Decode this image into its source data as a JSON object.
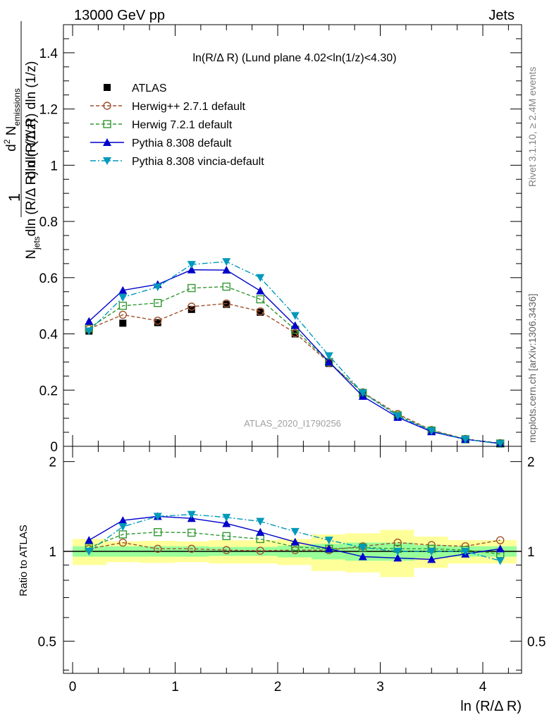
{
  "header": {
    "left": "13000 GeV pp",
    "right": "Jets",
    "side_top": "Rivet 3.1.10, ≥ 2.4M events",
    "side_bottom": "mcplots.cern.ch [arXiv:1306.3436]",
    "analysis_id": "ATLAS_2020_I1790256"
  },
  "chart_data": [
    {
      "type": "line",
      "title": "ln(R/Δ R) (Lund plane 4.02<ln(1/z)<4.30)",
      "xlabel": "ln (R/Δ R)",
      "ylabel": "1/N_jets d²N_emissions / dln(R/Δ R) dln(1/z)",
      "xlim": [
        -0.1,
        4.4
      ],
      "ylim": [
        0,
        1.5
      ],
      "yticks": [
        0,
        0.2,
        0.4,
        0.6,
        0.8,
        1,
        1.2,
        1.4
      ],
      "ytick_labels": [
        "0",
        "0.2",
        "0.4",
        "0.6",
        "0.8",
        "1",
        "1.2",
        "1.4"
      ],
      "x": [
        0.16,
        0.49,
        0.83,
        1.16,
        1.5,
        1.83,
        2.17,
        2.5,
        2.83,
        3.17,
        3.5,
        3.83,
        4.17
      ],
      "series": [
        {
          "name": "ATLAS",
          "color": "#000000",
          "marker": "square",
          "dash": "none",
          "values": [
            0.41,
            0.438,
            0.44,
            0.487,
            0.505,
            0.477,
            0.4,
            0.295,
            0.185,
            0.108,
            0.055,
            0.025,
            0.01
          ]
        },
        {
          "name": "Herwig++ 2.7.1 default",
          "color": "#a0522d",
          "marker": "circle-open",
          "dash": "dashed",
          "values": [
            0.418,
            0.468,
            0.447,
            0.497,
            0.508,
            0.48,
            0.403,
            0.298,
            0.192,
            0.115,
            0.058,
            0.026,
            0.011
          ]
        },
        {
          "name": "Herwig 7.2.1 default",
          "color": "#339933",
          "marker": "square-open",
          "dash": "dashed",
          "values": [
            0.42,
            0.5,
            0.51,
            0.563,
            0.568,
            0.523,
            0.415,
            0.3,
            0.19,
            0.11,
            0.056,
            0.025,
            0.01
          ]
        },
        {
          "name": "Pythia 8.308 default",
          "color": "#0000cc",
          "marker": "triangle-up",
          "dash": "solid",
          "values": [
            0.445,
            0.555,
            0.576,
            0.628,
            0.627,
            0.553,
            0.43,
            0.3,
            0.178,
            0.103,
            0.052,
            0.025,
            0.01
          ]
        },
        {
          "name": "Pythia 8.308 vincia-default",
          "color": "#0099bb",
          "marker": "triangle-down",
          "dash": "dashdot",
          "values": [
            0.41,
            0.53,
            0.567,
            0.647,
            0.657,
            0.6,
            0.465,
            0.322,
            0.19,
            0.108,
            0.055,
            0.025,
            0.009
          ]
        }
      ]
    },
    {
      "type": "line",
      "xlabel": "ln (R/Δ R)",
      "ylabel": "Ratio to ATLAS",
      "xlim": [
        -0.1,
        4.4
      ],
      "ylim": [
        0.39,
        2.25
      ],
      "yscale": "log",
      "xticks": [
        0,
        1,
        2,
        3,
        4
      ],
      "xtick_labels": [
        "0",
        "1",
        "2",
        "3",
        "4"
      ],
      "yticks": [
        0.5,
        1,
        2
      ],
      "ytick_labels": [
        "0.5",
        "1",
        "2"
      ],
      "bin_edges": [
        0,
        0.33,
        0.66,
        1.0,
        1.33,
        1.66,
        2.0,
        2.33,
        2.66,
        3.0,
        3.33,
        3.66,
        4.0,
        4.33
      ],
      "band_stat_halfwidth": [
        0.04,
        0.04,
        0.04,
        0.04,
        0.035,
        0.035,
        0.045,
        0.06,
        0.07,
        0.07,
        0.05,
        0.04,
        0.04
      ],
      "band_total_halfwidth": [
        0.1,
        0.08,
        0.085,
        0.08,
        0.09,
        0.09,
        0.1,
        0.14,
        0.15,
        0.18,
        0.12,
        0.09,
        0.09
      ],
      "x": [
        0.16,
        0.49,
        0.83,
        1.16,
        1.5,
        1.83,
        2.17,
        2.5,
        2.83,
        3.17,
        3.5,
        3.83,
        4.17
      ],
      "series": [
        {
          "name": "Herwig++ 2.7.1 default",
          "values": [
            1.02,
            1.07,
            1.02,
            1.02,
            1.01,
            1.005,
            1.01,
            1.01,
            1.04,
            1.07,
            1.05,
            1.04,
            1.09
          ]
        },
        {
          "name": "Herwig 7.2.1 default",
          "values": [
            1.03,
            1.14,
            1.16,
            1.155,
            1.125,
            1.1,
            1.035,
            1.02,
            1.03,
            1.02,
            1.02,
            1.01,
            0.98
          ]
        },
        {
          "name": "Pythia 8.308 default",
          "values": [
            1.09,
            1.27,
            1.31,
            1.29,
            1.24,
            1.16,
            1.075,
            1.02,
            0.96,
            0.95,
            0.94,
            0.98,
            1.02
          ]
        },
        {
          "name": "Pythia 8.308 vincia-default",
          "values": [
            1.0,
            1.21,
            1.31,
            1.33,
            1.3,
            1.26,
            1.165,
            1.09,
            1.03,
            1.0,
            1.0,
            1.0,
            0.93
          ]
        }
      ]
    }
  ]
}
